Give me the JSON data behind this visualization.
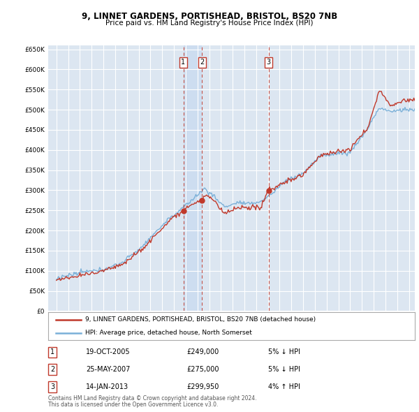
{
  "title1": "9, LINNET GARDENS, PORTISHEAD, BRISTOL, BS20 7NB",
  "title2": "Price paid vs. HM Land Registry's House Price Index (HPI)",
  "plot_bg": "#dce6f1",
  "hpi_color": "#7ab0d8",
  "price_color": "#c0392b",
  "shade_color": "#ccddf0",
  "ylim": [
    0,
    660000
  ],
  "yticks": [
    0,
    50000,
    100000,
    150000,
    200000,
    250000,
    300000,
    350000,
    400000,
    450000,
    500000,
    550000,
    600000,
    650000
  ],
  "xlim": [
    1994.3,
    2025.5
  ],
  "transactions": [
    {
      "num": 1,
      "date": "19-OCT-2005",
      "price": 249000,
      "hpi_diff": "5% ↓ HPI",
      "x_year": 2005.8
    },
    {
      "num": 2,
      "date": "25-MAY-2007",
      "price": 275000,
      "hpi_diff": "5% ↓ HPI",
      "x_year": 2007.4
    },
    {
      "num": 3,
      "date": "14-JAN-2013",
      "price": 299950,
      "hpi_diff": "4% ↑ HPI",
      "x_year": 2013.05
    }
  ],
  "legend_line1": "9, LINNET GARDENS, PORTISHEAD, BRISTOL, BS20 7NB (detached house)",
  "legend_line2": "HPI: Average price, detached house, North Somerset",
  "footer1": "Contains HM Land Registry data © Crown copyright and database right 2024.",
  "footer2": "This data is licensed under the Open Government Licence v3.0."
}
